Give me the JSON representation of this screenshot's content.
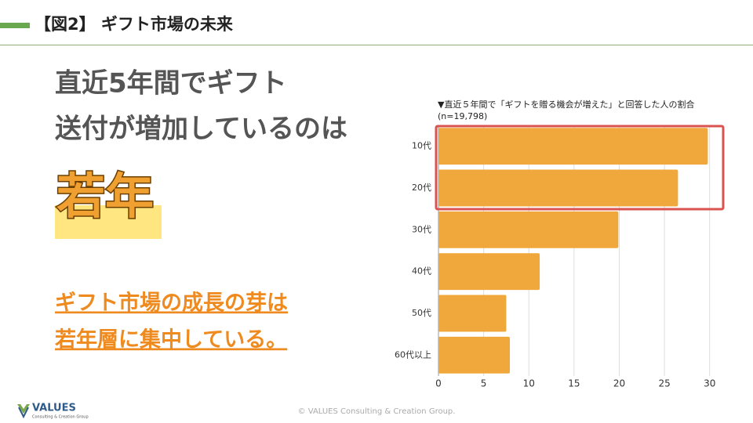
{
  "header": {
    "title": "【図2】 ギフト市場の未来"
  },
  "headline": {
    "lines": [
      "直近5年間でギフト",
      "送付が増加しているのは"
    ],
    "highlight": "若年"
  },
  "note": {
    "lines": [
      "ギフト市場の成長の芽は",
      "若年層に集中している。"
    ]
  },
  "logo": {
    "name": "VALUES",
    "tagline": "Consulting & Creation Group"
  },
  "footer": "© VALUES Consulting & Creation Group.",
  "chart_data": {
    "type": "bar",
    "orientation": "horizontal",
    "title": "▼直近５年間で「ギフトを贈る機会が増えた」と回答した人の割合",
    "subtitle": "(n=19,798)",
    "categories": [
      "10代",
      "20代",
      "30代",
      "40代",
      "50代",
      "60代以上"
    ],
    "values": [
      29.8,
      26.5,
      19.9,
      11.2,
      7.5,
      7.9
    ],
    "color": "#f0a83c",
    "xlim": [
      0,
      31.5
    ],
    "xticks": [
      0,
      5,
      10,
      15,
      20,
      25,
      30
    ],
    "grid": true
  }
}
